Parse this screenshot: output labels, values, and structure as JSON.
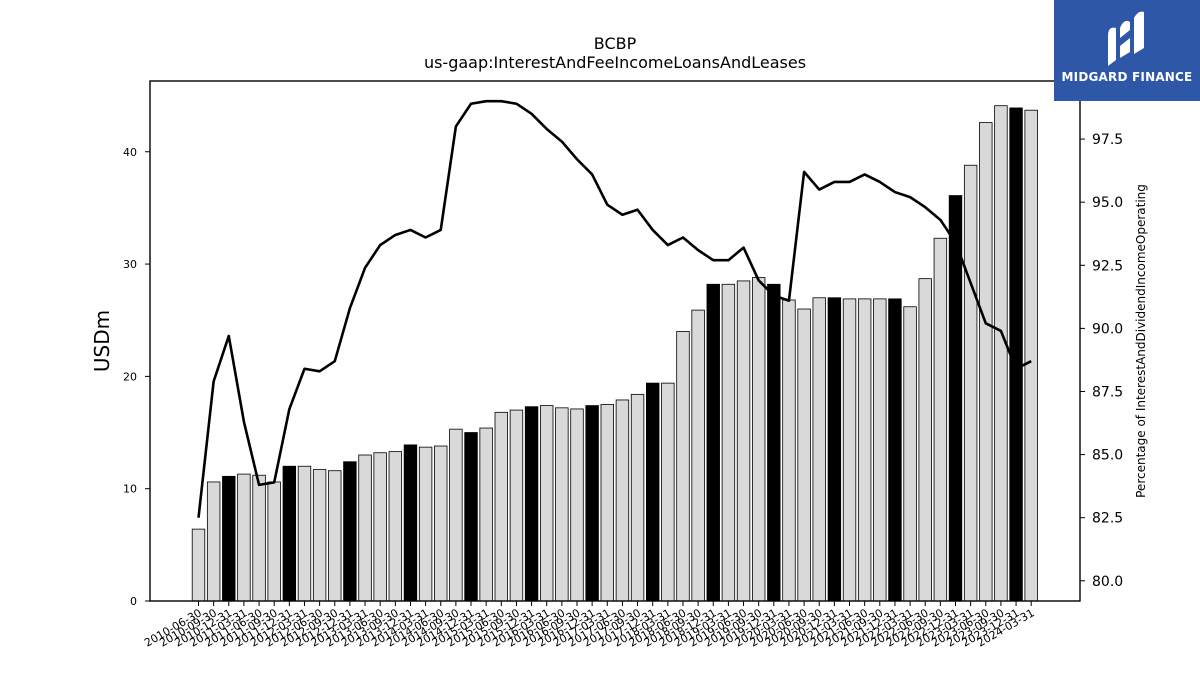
{
  "chart_data": {
    "type": "bar",
    "title": "BCBP",
    "subtitle": "us-gaap:InterestAndFeeIncomeLoansAndLeases",
    "ylabel": "USDm",
    "y2label": "Percentage of InterestAndDividendIncomeOperating",
    "ylim": [
      0,
      46.3
    ],
    "y2lim": [
      79.2,
      99.8
    ],
    "yticks": [
      0,
      10,
      20,
      30,
      40
    ],
    "y2ticks": [
      "80.0",
      "82.5",
      "85.0",
      "87.5",
      "90.0",
      "92.5",
      "95.0",
      "97.5"
    ],
    "grid": false,
    "categories": [
      "2010-06-30",
      "2010-09-30",
      "2010-12-31",
      "2011-03-31",
      "2011-06-30",
      "2011-09-30",
      "2011-12-31",
      "2012-03-31",
      "2012-06-30",
      "2012-09-30",
      "2012-12-31",
      "2013-03-31",
      "2013-06-30",
      "2013-09-30",
      "2013-12-31",
      "2014-03-31",
      "2014-06-30",
      "2014-09-30",
      "2014-12-31",
      "2015-03-31",
      "2015-06-30",
      "2015-09-30",
      "2015-12-31",
      "2016-03-31",
      "2016-06-30",
      "2016-09-30",
      "2016-12-31",
      "2017-03-31",
      "2017-06-30",
      "2017-09-30",
      "2017-12-31",
      "2018-03-31",
      "2018-06-30",
      "2018-09-30",
      "2018-12-31",
      "2019-03-31",
      "2019-06-30",
      "2019-09-30",
      "2019-12-31",
      "2020-03-31",
      "2020-06-30",
      "2020-09-30",
      "2020-12-31",
      "2021-03-31",
      "2021-06-30",
      "2021-09-30",
      "2021-12-31",
      "2022-03-31",
      "2022-06-30",
      "2022-09-30",
      "2022-12-31",
      "2023-03-31",
      "2023-06-30",
      "2023-09-30",
      "2023-12-31",
      "2024-03-31"
    ],
    "xtick_labels_shown": [
      "2010-06-30",
      "2010-09-30",
      "2010-12-31",
      "2011-03-31",
      "2011-06-30",
      "2011-09-30",
      "2011-12-31",
      "2012-03-31",
      "2012-06-30",
      "2012-09-30",
      "2012-12-31",
      "2013-03-31",
      "2013-06-30",
      "2013-09-30",
      "2013-12-31",
      "2014-03-31",
      "2014-06-30",
      "2014-09-30",
      "2014-12-31",
      "2015-03-31",
      "2015-06-30",
      "2015-09-30",
      "2015-12-31",
      "2016-03-31",
      "2016-06-30",
      "2016-09-30",
      "2016-12-31",
      "2017-03-31",
      "2017-06-30",
      "2017-09-30",
      "2017-12-31",
      "2018-03-31",
      "2018-06-30",
      "2018-09-30",
      "2018-12-31",
      "2019-03-31",
      "2019-06-30",
      "2019-09-30",
      "2019-12-31",
      "2020-03-31",
      "2020-06-30",
      "2020-09-30",
      "2020-12-31",
      "2021-03-31",
      "2021-06-30",
      "2021-09-30",
      "2021-12-31",
      "2022-03-31",
      "2022-06-30",
      "2022-09-30",
      "2022-12-31",
      "2023-03-31",
      "2023-06-30",
      "2023-09-30",
      "2023-12-31",
      "2024-03-31"
    ],
    "series": [
      {
        "type": "bar",
        "axis": "left",
        "values": [
          6.4,
          10.6,
          11.1,
          11.3,
          11.2,
          10.6,
          12.0,
          12.0,
          11.7,
          11.6,
          12.4,
          13.0,
          13.2,
          13.3,
          13.9,
          13.7,
          13.8,
          15.3,
          15.0,
          15.4,
          16.8,
          17.0,
          17.3,
          17.4,
          17.2,
          17.1,
          17.4,
          17.5,
          17.9,
          18.4,
          19.4,
          19.4,
          24.0,
          25.9,
          28.2,
          28.2,
          28.5,
          28.8,
          28.2,
          26.8,
          26.0,
          27.0,
          27.0,
          26.9,
          26.9,
          26.9,
          26.9,
          26.2,
          28.7,
          32.3,
          36.1,
          38.8,
          42.6,
          44.1,
          43.9,
          43.7
        ],
        "annual_highlight_color": "#000000",
        "quarter_color": "#d9d9d9"
      },
      {
        "type": "line",
        "axis": "right",
        "color": "#000000",
        "values": [
          82.5,
          87.9,
          89.7,
          86.3,
          83.8,
          83.9,
          86.8,
          88.4,
          88.3,
          88.7,
          90.8,
          92.4,
          93.3,
          93.7,
          93.9,
          93.6,
          93.9,
          98.0,
          98.9,
          99.0,
          99.0,
          98.9,
          98.5,
          97.9,
          97.4,
          96.7,
          96.1,
          94.9,
          94.5,
          94.7,
          93.9,
          93.3,
          93.6,
          93.1,
          92.7,
          92.7,
          93.2,
          91.9,
          91.3,
          91.1,
          96.2,
          95.5,
          95.8,
          95.8,
          96.1,
          95.8,
          95.4,
          95.2,
          94.8,
          94.3,
          93.4,
          91.8,
          90.2,
          89.9,
          88.4,
          88.7
        ]
      }
    ],
    "highlighted_indices": [
      2,
      6,
      10,
      14,
      18,
      22,
      26,
      30,
      34,
      38,
      42,
      46,
      50,
      54
    ]
  },
  "logo": {
    "text": "MIDGARD FINANCE",
    "background": "#2e57a8",
    "icon": "midgard-logo-icon"
  }
}
